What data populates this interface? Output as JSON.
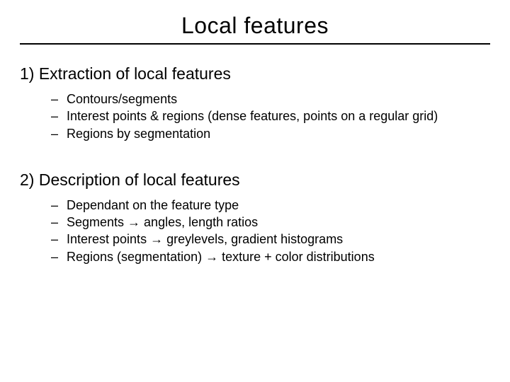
{
  "slide": {
    "title": "Local features",
    "title_fontsize": 32,
    "background_color": "#ffffff",
    "text_color": "#000000",
    "rule_color": "#000000",
    "sections": [
      {
        "heading": "1) Extraction of local features",
        "heading_fontsize": 23,
        "bullets": [
          "Contours/segments",
          "Interest points & regions (dense features, points on a regular grid)",
          "Regions by segmentation"
        ],
        "bullet_fontsize": 18
      },
      {
        "heading": "2) Description of local features",
        "heading_fontsize": 23,
        "bullets": [
          "Dependant on the feature type",
          "Segments → angles, length ratios",
          "Interest points → greylevels, gradient histograms",
          "Regions (segmentation) → texture + color distributions"
        ],
        "bullet_fontsize": 18
      }
    ]
  }
}
